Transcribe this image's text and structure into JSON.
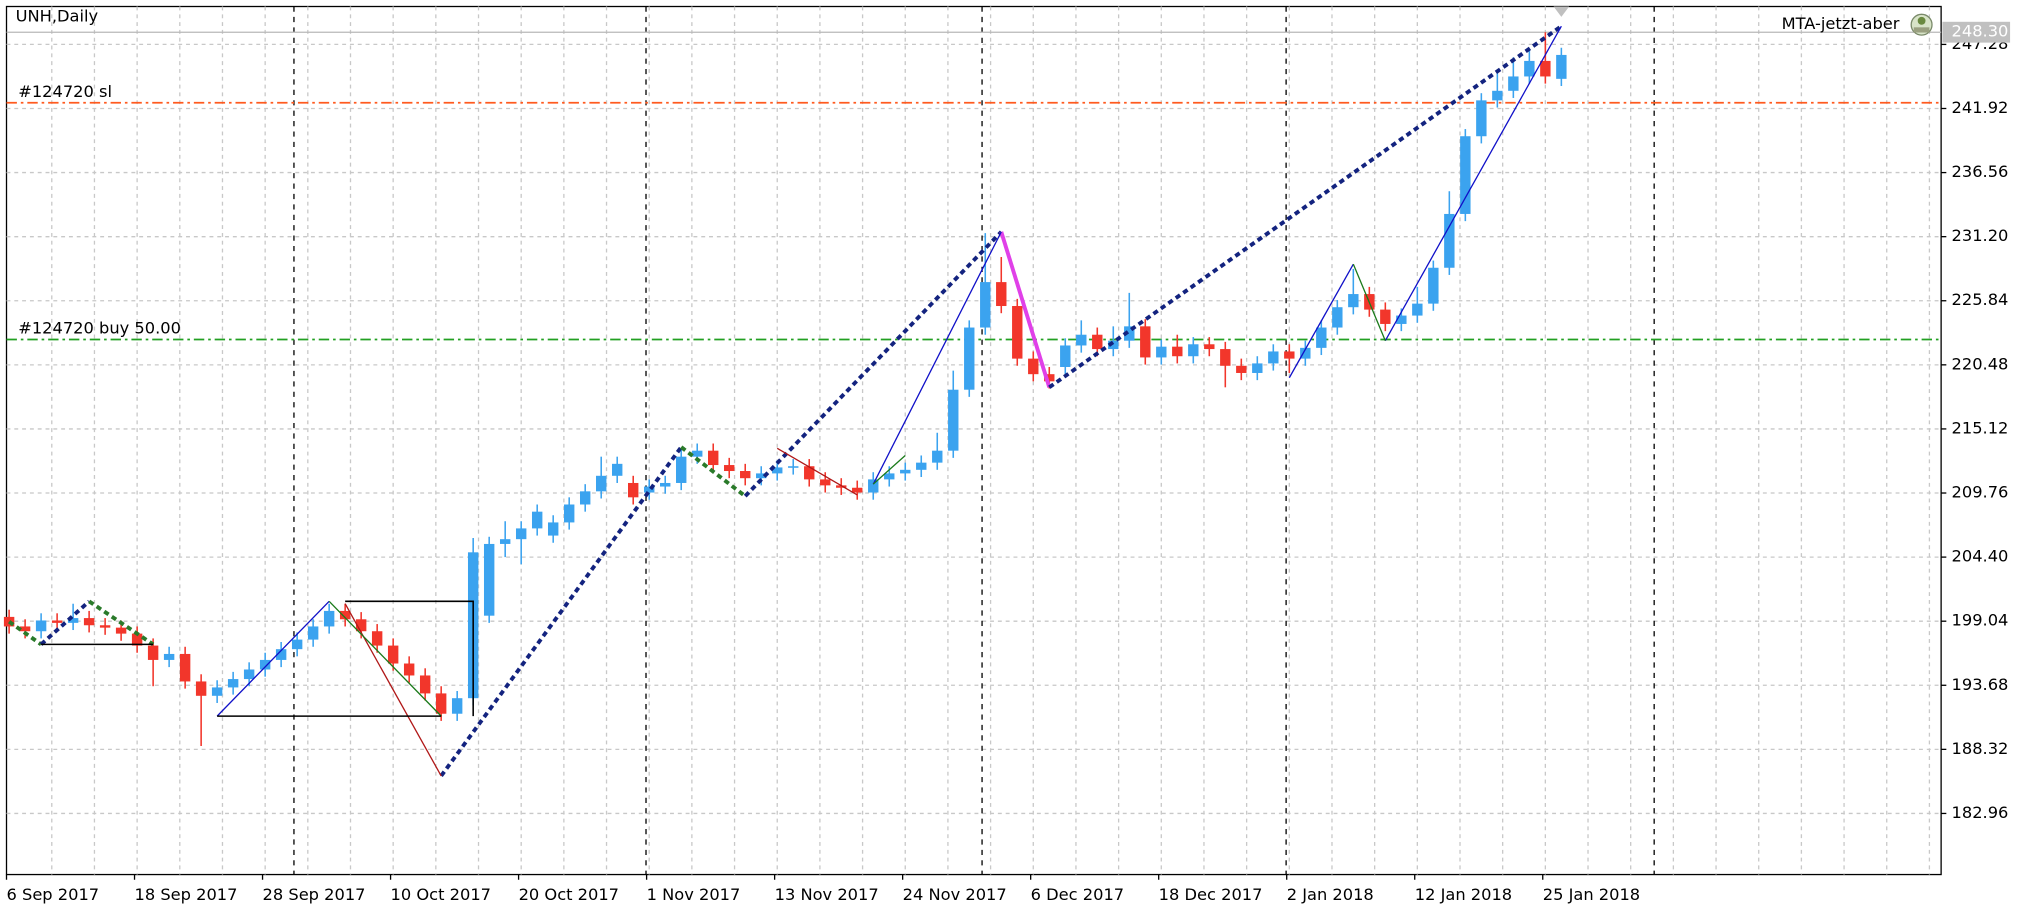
{
  "chart_data": {
    "type": "candlestick",
    "title": "UNH,Daily",
    "indicator": "MTA-jetzt-aber",
    "categories": [
      "6 Sep 2017",
      null,
      null,
      null,
      null,
      null,
      null,
      null,
      "18 Sep 2017",
      null,
      null,
      null,
      null,
      null,
      null,
      null,
      "28 Sep 2017",
      null,
      null,
      null,
      null,
      null,
      null,
      null,
      "10 Oct 2017",
      null,
      null,
      null,
      null,
      null,
      null,
      null,
      "20 Oct 2017",
      null,
      null,
      null,
      null,
      null,
      null,
      null,
      "1 Nov 2017",
      null,
      null,
      null,
      null,
      null,
      null,
      null,
      "13 Nov 2017",
      null,
      null,
      null,
      null,
      null,
      null,
      null,
      "24 Nov 2017",
      null,
      null,
      null,
      null,
      null,
      null,
      null,
      "6 Dec 2017",
      null,
      null,
      null,
      null,
      null,
      null,
      null,
      "18 Dec 2017",
      null,
      null,
      null,
      null,
      null,
      null,
      null,
      "2 Jan 2018",
      null,
      null,
      null,
      null,
      null,
      null,
      null,
      "12 Jan 2018",
      null,
      null,
      null,
      null,
      null,
      null,
      null,
      "25 Jan 2018",
      null
    ],
    "open": [
      199.4,
      198.6,
      198.2,
      199.1,
      198.9,
      199.3,
      198.7,
      198.5,
      198.0,
      197.0,
      195.8,
      196.3,
      194.0,
      192.8,
      193.5,
      194.2,
      195.0,
      195.8,
      196.7,
      197.5,
      198.6,
      199.9,
      199.2,
      198.2,
      197.0,
      195.5,
      194.5,
      193.0,
      191.3,
      192.6,
      199.5,
      205.5,
      205.9,
      206.8,
      206.2,
      207.3,
      208.8,
      209.9,
      211.2,
      210.6,
      209.8,
      210.3,
      210.6,
      212.8,
      213.3,
      212.1,
      211.6,
      211.0,
      211.4,
      211.9,
      212.0,
      210.9,
      210.4,
      210.2,
      209.8,
      210.9,
      211.4,
      211.7,
      212.3,
      213.3,
      218.4,
      223.6,
      227.4,
      225.4,
      221.0,
      219.7,
      220.3,
      222.1,
      223.0,
      221.8,
      222.5,
      223.7,
      221.1,
      222.0,
      221.2,
      222.2,
      221.8,
      220.4,
      219.8,
      220.6,
      221.6,
      221.0,
      221.9,
      223.6,
      225.3,
      226.4,
      225.1,
      223.9,
      224.6,
      225.6,
      228.6,
      233.1,
      239.6,
      242.6,
      243.4,
      244.6,
      245.9,
      244.4
    ],
    "high": [
      200.0,
      199.2,
      199.7,
      199.7,
      200.5,
      199.9,
      199.3,
      199.1,
      198.6,
      197.6,
      196.9,
      196.9,
      194.6,
      194.1,
      194.8,
      195.6,
      196.4,
      197.3,
      198.1,
      199.2,
      200.5,
      200.5,
      199.8,
      198.8,
      197.6,
      196.1,
      195.1,
      193.6,
      193.2,
      206.0,
      206.1,
      207.4,
      207.4,
      208.8,
      207.9,
      209.4,
      210.5,
      212.8,
      212.8,
      211.2,
      210.9,
      211.2,
      213.4,
      213.9,
      213.9,
      212.7,
      212.2,
      212.0,
      212.5,
      212.6,
      212.6,
      211.5,
      211.0,
      210.8,
      211.5,
      212.0,
      212.3,
      212.9,
      214.8,
      220.0,
      224.2,
      231.5,
      229.5,
      226.0,
      221.6,
      220.3,
      222.7,
      224.2,
      223.6,
      223.7,
      226.5,
      224.3,
      222.6,
      223.0,
      222.8,
      222.8,
      222.4,
      221.0,
      221.2,
      222.2,
      222.2,
      222.5,
      224.2,
      225.9,
      228.5,
      227.0,
      225.7,
      225.2,
      227.0,
      229.2,
      235.0,
      240.2,
      243.2,
      245.0,
      246.2,
      246.8,
      248.3,
      247.0
    ],
    "low": [
      198.0,
      197.6,
      197.6,
      198.3,
      198.3,
      198.1,
      197.9,
      197.4,
      196.4,
      193.6,
      195.2,
      193.4,
      188.6,
      192.2,
      192.9,
      193.6,
      194.4,
      195.2,
      196.1,
      196.9,
      198.0,
      198.6,
      197.6,
      196.4,
      194.9,
      193.9,
      192.4,
      190.7,
      190.7,
      192.0,
      198.9,
      204.4,
      203.8,
      206.2,
      205.6,
      206.7,
      208.2,
      209.3,
      210.6,
      208.8,
      209.2,
      209.7,
      210.0,
      212.2,
      211.5,
      211.0,
      210.4,
      210.4,
      210.8,
      211.3,
      210.3,
      209.8,
      209.6,
      209.2,
      209.2,
      210.3,
      210.8,
      211.1,
      211.7,
      212.7,
      217.8,
      223.0,
      224.8,
      220.4,
      219.1,
      218.5,
      219.7,
      221.5,
      221.2,
      221.2,
      221.9,
      220.5,
      220.5,
      220.6,
      220.6,
      221.2,
      218.6,
      219.2,
      219.2,
      220.0,
      219.8,
      220.4,
      221.3,
      223.0,
      224.7,
      224.5,
      223.3,
      223.3,
      224.0,
      225.0,
      228.0,
      232.5,
      239.0,
      242.0,
      242.8,
      244.0,
      244.0,
      243.8
    ],
    "close": [
      198.6,
      198.2,
      199.1,
      198.9,
      199.3,
      198.7,
      198.5,
      198.0,
      197.0,
      195.8,
      196.3,
      194.0,
      192.8,
      193.5,
      194.2,
      195.0,
      195.8,
      196.7,
      197.5,
      198.6,
      199.9,
      199.2,
      198.2,
      197.0,
      195.5,
      194.5,
      193.0,
      191.3,
      192.6,
      204.8,
      205.5,
      205.9,
      206.8,
      208.2,
      207.3,
      208.8,
      209.9,
      211.2,
      212.2,
      209.4,
      210.3,
      210.6,
      212.8,
      213.3,
      212.1,
      211.6,
      211.0,
      211.4,
      211.9,
      212.0,
      210.9,
      210.4,
      210.2,
      209.8,
      210.9,
      211.4,
      211.7,
      212.3,
      213.3,
      218.4,
      223.6,
      227.4,
      225.4,
      221.0,
      219.7,
      219.1,
      222.1,
      223.0,
      221.8,
      222.5,
      223.7,
      221.1,
      222.0,
      221.2,
      222.2,
      221.8,
      220.4,
      219.8,
      220.6,
      221.6,
      221.0,
      221.9,
      223.6,
      225.3,
      226.4,
      225.1,
      223.9,
      224.6,
      225.6,
      228.6,
      233.1,
      239.6,
      242.6,
      243.4,
      244.6,
      245.9,
      244.6,
      246.4
    ],
    "up_color": "#3ba3ef",
    "down_color": "#f2362b",
    "ylim": [
      177.85,
      250.45
    ],
    "yticks": [
      182.96,
      188.32,
      193.68,
      199.04,
      {
        "value": 204.4,
        "label": "204.40"
      },
      209.76,
      215.12,
      220.48,
      225.84,
      {
        "value": 231.2,
        "label": "231.20"
      },
      236.56,
      241.92,
      247.28
    ],
    "grid": true,
    "bid": {
      "value": 248.3,
      "label": "248.30"
    },
    "hlines": [
      {
        "label": "#124720 sl",
        "value": 242.4,
        "color": "#ff5a1f"
      },
      {
        "label": "#124720 buy 50.00",
        "value": 222.6,
        "color": "#22a022"
      }
    ],
    "overlays": [
      {
        "color": "#13237f",
        "width": 3,
        "dash": true,
        "points": [
          [
            27,
            186.1
          ],
          [
            42,
            213.6
          ]
        ]
      },
      {
        "color": "#2a7a2a",
        "width": 3,
        "dash": true,
        "points": [
          [
            42,
            213.6
          ],
          [
            46,
            209.5
          ]
        ]
      },
      {
        "color": "#13237f",
        "width": 3,
        "dash": true,
        "points": [
          [
            46,
            209.5
          ],
          [
            62,
            231.6
          ]
        ]
      },
      {
        "color": "#e040e8",
        "width": 3,
        "dash": false,
        "points": [
          [
            62,
            231.6
          ],
          [
            65,
            218.6
          ]
        ]
      },
      {
        "color": "#13237f",
        "width": 3,
        "dash": true,
        "points": [
          [
            65,
            218.6
          ],
          [
            97,
            248.8
          ]
        ]
      },
      {
        "color": "#2a7a2a",
        "width": 3,
        "dash": true,
        "points": [
          [
            0,
            199.0
          ],
          [
            2,
            197.1
          ]
        ]
      },
      {
        "color": "#13237f",
        "width": 3,
        "dash": true,
        "points": [
          [
            2,
            197.1
          ],
          [
            5,
            200.7
          ]
        ]
      },
      {
        "color": "#2a7a2a",
        "width": 3,
        "dash": true,
        "points": [
          [
            5,
            200.7
          ],
          [
            9,
            197.1
          ]
        ]
      },
      {
        "color": "#1010c8",
        "width": 1,
        "dash": false,
        "points": [
          [
            13,
            191.1
          ],
          [
            20,
            200.7
          ]
        ]
      },
      {
        "color": "#1010c8",
        "width": 1,
        "dash": false,
        "points": [
          [
            54,
            210.5
          ],
          [
            62,
            231.6
          ]
        ]
      },
      {
        "color": "#1010c8",
        "width": 1,
        "dash": false,
        "points": [
          [
            80,
            219.4
          ],
          [
            84,
            228.9
          ]
        ]
      },
      {
        "color": "#1010c8",
        "width": 1,
        "dash": false,
        "points": [
          [
            86,
            222.5
          ],
          [
            97,
            248.8
          ]
        ]
      },
      {
        "color": "#b01818",
        "width": 1,
        "dash": false,
        "points": [
          [
            21,
            200.5
          ],
          [
            27,
            186.1
          ]
        ]
      },
      {
        "color": "#b01818",
        "width": 1,
        "dash": false,
        "points": [
          [
            48,
            213.5
          ],
          [
            53,
            209.6
          ]
        ]
      },
      {
        "color": "#1a7a1a",
        "width": 1,
        "dash": false,
        "points": [
          [
            20,
            200.7
          ],
          [
            27,
            191.1
          ]
        ]
      },
      {
        "color": "#1a7a1a",
        "width": 1,
        "dash": false,
        "points": [
          [
            54,
            210.5
          ],
          [
            56,
            212.9
          ]
        ]
      },
      {
        "color": "#1a7a1a",
        "width": 1,
        "dash": false,
        "points": [
          [
            84,
            228.9
          ],
          [
            86,
            222.5
          ]
        ]
      },
      {
        "color": "#000000",
        "width": 1.2,
        "dash": false,
        "points": [
          [
            2,
            197.1
          ],
          [
            9,
            197.1
          ]
        ]
      },
      {
        "color": "#000000",
        "width": 1.2,
        "dash": false,
        "points": [
          [
            13,
            191.1
          ],
          [
            27,
            191.1
          ]
        ]
      },
      {
        "color": "#000000",
        "width": 1.2,
        "dash": false,
        "points": [
          [
            21,
            200.7
          ],
          [
            29,
            200.7
          ],
          [
            29,
            191.1
          ]
        ]
      }
    ]
  }
}
